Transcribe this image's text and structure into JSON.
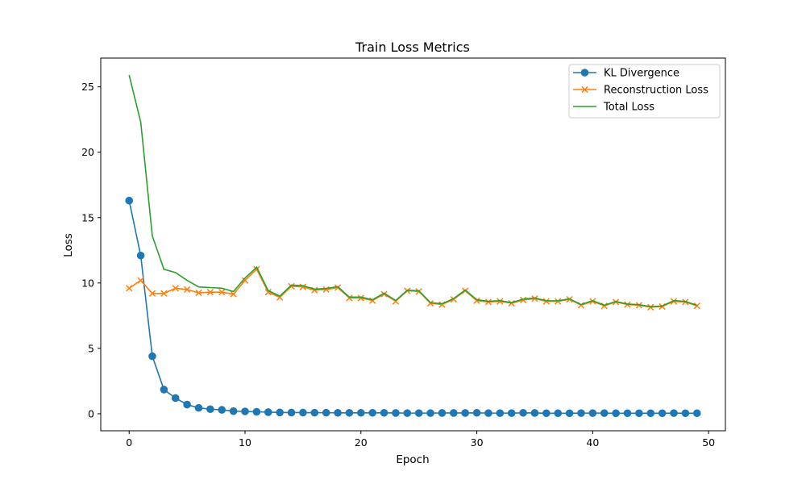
{
  "chart_data": {
    "type": "line",
    "title": "Train Loss Metrics",
    "xlabel": "Epoch",
    "ylabel": "Loss",
    "xlim": [
      -2.45,
      51.45
    ],
    "ylim": [
      -1.3,
      27.2
    ],
    "xticks": [
      0,
      10,
      20,
      30,
      40,
      50
    ],
    "yticks": [
      0,
      5,
      10,
      15,
      20,
      25
    ],
    "grid": false,
    "legend_position": "top-right",
    "x": [
      0,
      1,
      2,
      3,
      4,
      5,
      6,
      7,
      8,
      9,
      10,
      11,
      12,
      13,
      14,
      15,
      16,
      17,
      18,
      19,
      20,
      21,
      22,
      23,
      24,
      25,
      26,
      27,
      28,
      29,
      30,
      31,
      32,
      33,
      34,
      35,
      36,
      37,
      38,
      39,
      40,
      41,
      42,
      43,
      44,
      45,
      46,
      47,
      48,
      49
    ],
    "series": [
      {
        "name": "KL Divergence",
        "color": "#1f77b4",
        "marker": "circle",
        "values": [
          16.3,
          12.1,
          4.4,
          1.85,
          1.2,
          0.7,
          0.45,
          0.35,
          0.3,
          0.2,
          0.18,
          0.15,
          0.12,
          0.1,
          0.09,
          0.09,
          0.08,
          0.08,
          0.07,
          0.07,
          0.07,
          0.07,
          0.07,
          0.06,
          0.05,
          0.05,
          0.05,
          0.06,
          0.06,
          0.06,
          0.07,
          0.05,
          0.05,
          0.05,
          0.07,
          0.06,
          0.04,
          0.04,
          0.04,
          0.05,
          0.05,
          0.05,
          0.04,
          0.04,
          0.04,
          0.04,
          0.04,
          0.05,
          0.04,
          0.04
        ]
      },
      {
        "name": "Reconstruction Loss",
        "color": "#ff7f0e",
        "marker": "x",
        "values": [
          9.6,
          10.2,
          9.2,
          9.2,
          9.6,
          9.5,
          9.25,
          9.3,
          9.3,
          9.15,
          10.2,
          11.05,
          9.3,
          8.9,
          9.75,
          9.7,
          9.45,
          9.5,
          9.65,
          8.85,
          8.85,
          8.65,
          9.15,
          8.6,
          9.4,
          9.35,
          8.45,
          8.35,
          8.75,
          9.4,
          8.65,
          8.55,
          8.6,
          8.45,
          8.7,
          8.8,
          8.6,
          8.6,
          8.75,
          8.3,
          8.6,
          8.25,
          8.55,
          8.35,
          8.3,
          8.15,
          8.2,
          8.6,
          8.55,
          8.25
        ]
      },
      {
        "name": "Total Loss",
        "color": "#2ca02c",
        "marker": "none",
        "values": [
          25.9,
          22.3,
          13.6,
          11.05,
          10.8,
          10.2,
          9.7,
          9.65,
          9.6,
          9.35,
          10.38,
          11.2,
          9.42,
          9.0,
          9.84,
          9.79,
          9.53,
          9.58,
          9.72,
          8.92,
          8.92,
          8.72,
          9.22,
          8.66,
          9.45,
          9.4,
          8.5,
          8.41,
          8.81,
          9.46,
          8.72,
          8.6,
          8.65,
          8.5,
          8.77,
          8.86,
          8.64,
          8.64,
          8.79,
          8.35,
          8.65,
          8.3,
          8.59,
          8.39,
          8.34,
          8.19,
          8.24,
          8.65,
          8.59,
          8.29
        ]
      }
    ]
  }
}
